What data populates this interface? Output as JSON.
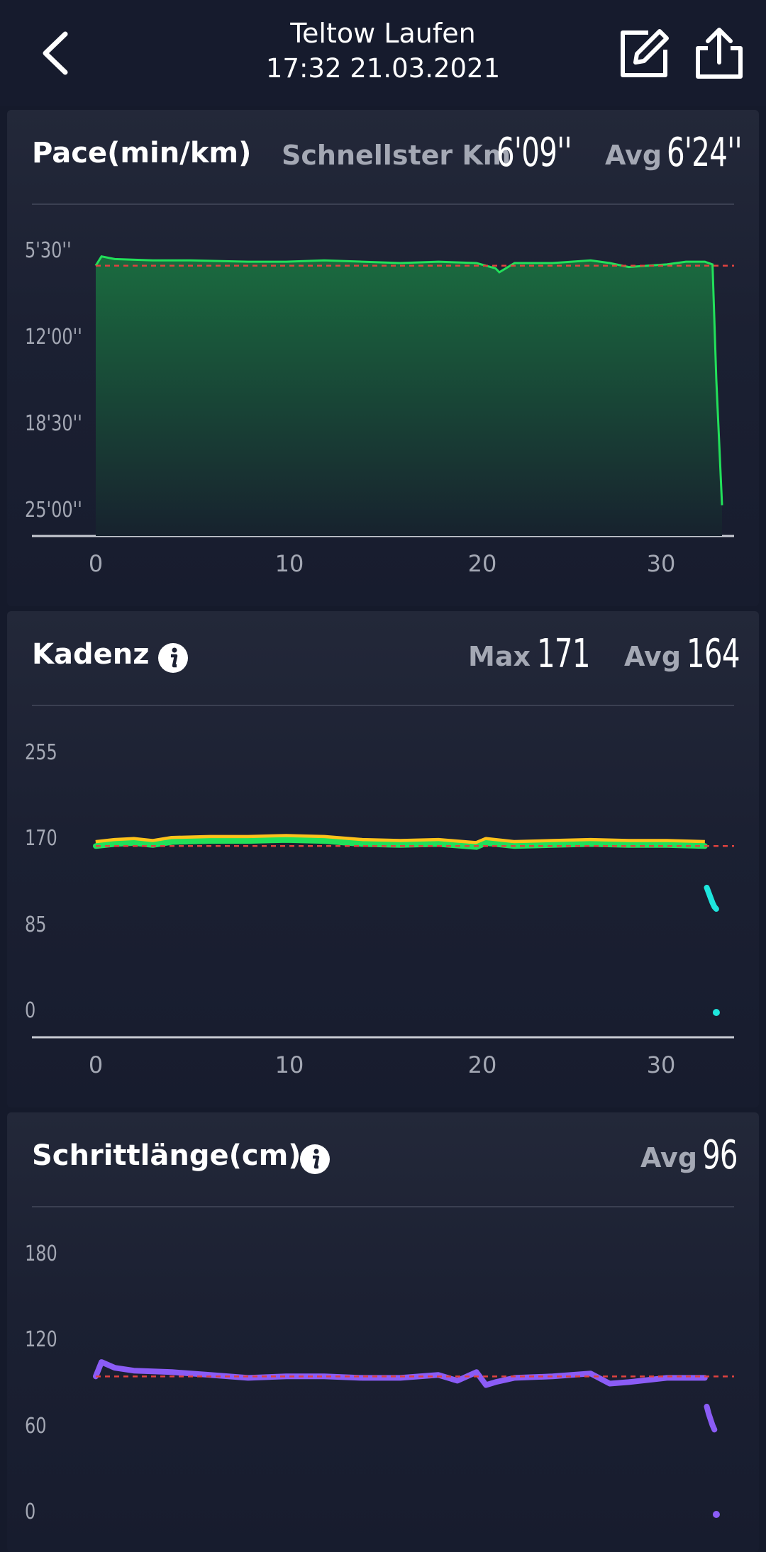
{
  "header": {
    "title": "Teltow Laufen",
    "subtitle": "17:32 21.03.2021",
    "back_icon": "chevron-left-icon",
    "edit_icon": "edit-icon",
    "share_icon": "share-icon"
  },
  "colors": {
    "background": "#151a2b",
    "card": "#232839",
    "pace_line": "#22e05a",
    "avg_line": "#e0423f",
    "cadence_yellow": "#ffc21a",
    "cadence_green": "#22e05a",
    "cadence_cyan": "#1ee6dd",
    "stride_purple": "#8b5cf6"
  },
  "pace": {
    "title": "Pace(min/km)",
    "fastest_label": "Schnellster Km",
    "fastest_value": "6'09''",
    "avg_label": "Avg",
    "avg_value": "6'24''",
    "y_ticks": [
      "5'30''",
      "12'00''",
      "18'30''",
      "25'00''"
    ],
    "x_ticks": [
      "0",
      "10",
      "20",
      "30"
    ]
  },
  "cadence": {
    "title": "Kadenz",
    "info_icon": "info-icon",
    "max_label": "Max",
    "max_value": "171",
    "avg_label": "Avg",
    "avg_value": "164",
    "y_ticks": [
      "255",
      "170",
      "85",
      "0"
    ],
    "x_ticks": [
      "0",
      "10",
      "20",
      "30"
    ]
  },
  "stride": {
    "title": "Schrittlänge(cm)",
    "info_icon": "info-icon",
    "avg_label": "Avg",
    "avg_value": "96",
    "y_ticks": [
      "180",
      "120",
      "60",
      "0"
    ]
  },
  "chart_data": [
    {
      "type": "area",
      "x_ticks": [
        0,
        10,
        20,
        30
      ],
      "y_ticks": [
        5.5,
        12,
        18.5,
        25
      ],
      "y_inverted": true,
      "avg_line": 6.4,
      "series": [
        {
          "x": [
            0,
            0.3,
            1,
            3,
            5,
            8,
            10,
            12,
            14,
            16,
            18,
            20,
            21,
            21.2,
            22,
            24,
            26,
            27,
            28,
            30,
            31,
            32,
            32.4,
            32.6,
            32.9
          ],
          "values": [
            6.4,
            5.7,
            5.9,
            6.0,
            6.0,
            6.1,
            6.1,
            6.0,
            6.1,
            6.2,
            6.1,
            6.2,
            6.6,
            6.9,
            6.2,
            6.2,
            6.0,
            6.2,
            6.5,
            6.3,
            6.1,
            6.1,
            6.3,
            15.0,
            24.6
          ]
        }
      ]
    },
    {
      "type": "scatter",
      "x_ticks": [
        0,
        10,
        20,
        30
      ],
      "y_ticks": [
        0,
        85,
        170,
        255
      ],
      "avg_line": 164,
      "series": [
        {
          "x": [
            0,
            1,
            2,
            3,
            4,
            6,
            8,
            10,
            12,
            14,
            16,
            18,
            20,
            20.5,
            22,
            24,
            26,
            28,
            30,
            32
          ],
          "values": [
            164,
            166,
            167,
            165,
            168,
            169,
            169,
            170,
            169,
            166,
            165,
            166,
            163,
            167,
            164,
            165,
            166,
            165,
            165,
            164
          ]
        },
        {
          "x": [
            32.1,
            32.2,
            32.3,
            32.4,
            32.5,
            32.6
          ],
          "values": [
            123,
            118,
            113,
            108,
            104,
            102
          ]
        },
        {
          "x": [
            32.6
          ],
          "values": [
            0
          ]
        }
      ]
    },
    {
      "type": "scatter",
      "x_ticks": [
        0,
        10,
        20,
        30
      ],
      "y_ticks": [
        0,
        60,
        120,
        180
      ],
      "avg_line": 96,
      "series": [
        {
          "x": [
            0,
            0.3,
            1,
            2,
            4,
            6,
            8,
            10,
            12,
            14,
            16,
            18,
            19,
            20,
            20.5,
            21,
            22,
            24,
            26,
            27,
            28,
            30,
            32
          ],
          "values": [
            96,
            106,
            102,
            100,
            99,
            97,
            95,
            96,
            96,
            95,
            95,
            97,
            93,
            99,
            90,
            92,
            95,
            96,
            98,
            91,
            92,
            95,
            95
          ]
        },
        {
          "x": [
            32.1,
            32.2,
            32.3,
            32.4,
            32.5
          ],
          "values": [
            75,
            70,
            66,
            62,
            59
          ]
        },
        {
          "x": [
            32.6
          ],
          "values": [
            0
          ]
        }
      ]
    }
  ]
}
